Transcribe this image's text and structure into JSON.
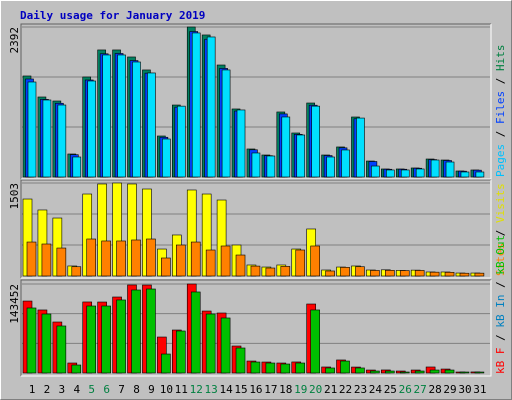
{
  "chart_data": {
    "type": "bar",
    "title": "Daily usage for January 2019",
    "title_color": "#0000c0",
    "categories": [
      "1",
      "2",
      "3",
      "4",
      "5",
      "6",
      "7",
      "8",
      "9",
      "10",
      "11",
      "12",
      "13",
      "14",
      "15",
      "16",
      "17",
      "18",
      "19",
      "20",
      "21",
      "22",
      "23",
      "24",
      "25",
      "26",
      "27",
      "28",
      "29",
      "30",
      "31"
    ],
    "category_colors": [
      "#000000",
      "#000000",
      "#000000",
      "#000000",
      "#008040",
      "#008040",
      "#000000",
      "#000000",
      "#000000",
      "#000000",
      "#000000",
      "#008040",
      "#008040",
      "#000000",
      "#000000",
      "#000000",
      "#000000",
      "#000000",
      "#008040",
      "#008040",
      "#000000",
      "#000000",
      "#000000",
      "#000000",
      "#000000",
      "#008040",
      "#008040",
      "#000000",
      "#000000",
      "#000000",
      "#000000"
    ],
    "grid": true,
    "panels": [
      {
        "ylim": [
          0,
          2392
        ],
        "yticks": [
          2392
        ],
        "legend": [
          {
            "text": "Pages",
            "color": "#00c0ff"
          },
          {
            "text": " / ",
            "color": "#000000"
          },
          {
            "text": "Files",
            "color": "#0040ff"
          },
          {
            "text": " / ",
            "color": "#000000"
          },
          {
            "text": "Hits",
            "color": "#008040"
          }
        ],
        "series": [
          {
            "color": "#008060",
            "values": [
              1611,
              1276,
              1212,
              367,
              1595,
              2026,
              2026,
              1914,
              1707,
              654,
              1148,
              2392,
              2265,
              1786,
              1085,
              447,
              351,
              1037,
              702,
              1180,
              351,
              479,
              957,
              255,
              128,
              128,
              144,
              287,
              271,
              96,
              112
            ]
          },
          {
            "color": "#0040ff",
            "values": [
              1563,
              1238,
              1176,
              356,
              1547,
              1965,
              1970,
              1857,
              1656,
              634,
              1114,
              2320,
              2197,
              1732,
              1052,
              434,
              340,
              1006,
              681,
              1145,
              342,
              465,
              928,
              247,
              124,
              124,
              140,
              278,
              263,
              93,
              109
            ]
          },
          {
            "color": "#00e0ff",
            "values": [
              1515,
              1228,
              1148,
              319,
              1531,
              1946,
              1946,
              1834,
              1659,
              606,
              1130,
              2297,
              2233,
              1707,
              1069,
              383,
              335,
              957,
              670,
              1130,
              319,
              431,
              940,
              175,
              112,
              112,
              128,
              271,
              239,
              80,
              80
            ]
          }
        ]
      },
      {
        "ylim": [
          0,
          1503
        ],
        "yticks": [
          1503
        ],
        "legend": [
          {
            "text": "Sites",
            "color": "#ff8000"
          },
          {
            "text": " / ",
            "color": "#000000"
          },
          {
            "text": "Visits",
            "color": "#e0e000"
          }
        ],
        "series": [
          {
            "color": "#ffff00",
            "values": [
              1244,
              1067,
              937,
              162,
              1325,
              1487,
              1503,
              1487,
              1406,
              436,
              663,
              1390,
              1325,
              1228,
              501,
              178,
              145,
              178,
              436,
              760,
              97,
              145,
              162,
              97,
              100,
              90,
              95,
              65,
              65,
              48,
              48
            ]
          },
          {
            "color": "#ff8000",
            "values": [
              549,
              517,
              452,
              150,
              598,
              566,
              566,
              582,
              598,
              291,
              501,
              549,
              420,
              485,
              339,
              160,
              129,
              155,
              420,
              485,
              81,
              140,
              150,
              90,
              92,
              88,
              90,
              62,
              60,
              45,
              46
            ]
          }
        ]
      },
      {
        "ylim": [
          0,
          143452
        ],
        "yticks": [
          143452
        ],
        "legend": [
          {
            "text": "kB F",
            "color": "#ff0000"
          },
          {
            "text": " / ",
            "color": "#000000"
          },
          {
            "text": "kB In",
            "color": "#0080c0"
          },
          {
            "text": " / ",
            "color": "#000000"
          },
          {
            "text": "kB Out",
            "color": "#00c000"
          }
        ],
        "series": [
          {
            "color": "#ff0000",
            "values": [
              116000,
              101600,
              82200,
              16100,
              114500,
              114400,
              122500,
              141900,
              141800,
              58000,
              69300,
              143452,
              99900,
              96700,
              43500,
              19300,
              17700,
              16100,
              17800,
              111200,
              9700,
              21000,
              9600,
              4800,
              4900,
              3200,
              4800,
              9700,
              6400,
              1600,
              1700
            ]
          },
          {
            "color": "#00c000",
            "values": [
              104800,
              95100,
              75800,
              12900,
              108000,
              108000,
              117700,
              133800,
              135400,
              30600,
              67700,
              130600,
              95100,
              88700,
              40300,
              17700,
              16100,
              14500,
              16100,
              101600,
              8100,
              19300,
              8100,
              3200,
              3200,
              1600,
              3200,
              4800,
              4800,
              1600,
              1600
            ]
          }
        ]
      }
    ]
  }
}
